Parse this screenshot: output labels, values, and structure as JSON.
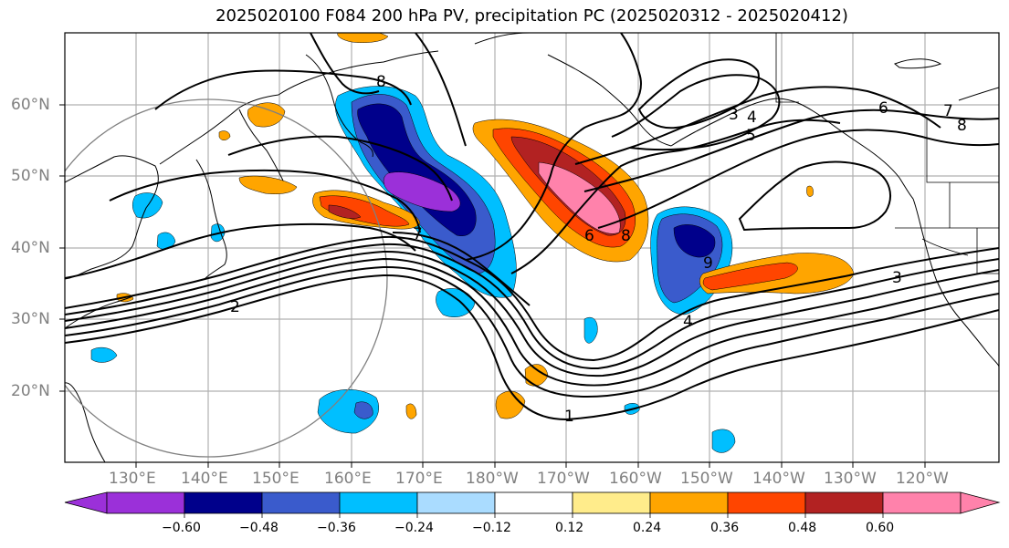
{
  "title": "2025020100 F084 200 hPa PV, precipitation PC (2025020312 - 2025020412)",
  "lat_labels": [
    "60°N",
    "50°N",
    "40°N",
    "30°N",
    "20°N"
  ],
  "lon_labels": [
    "130°E",
    "140°E",
    "150°E",
    "160°E",
    "170°E",
    "180°W",
    "170°W",
    "160°W",
    "150°W",
    "140°W",
    "130°W",
    "120°W"
  ],
  "contour_labels": [
    "8",
    "7",
    "2",
    "1",
    "4",
    "5",
    "6",
    "7",
    "8",
    "3",
    "4",
    "8",
    "9",
    "6",
    "3"
  ],
  "colorbar": {
    "tick_labels": [
      "−0.60",
      "−0.48",
      "−0.36",
      "−0.24",
      "−0.12",
      "0.12",
      "0.24",
      "0.36",
      "0.48",
      "0.60"
    ],
    "colors": [
      "#9b30d9",
      "#00008b",
      "#3a5bcc",
      "#00bfff",
      "#aadcff",
      "#ffffff",
      "#ffec8b",
      "#ffa500",
      "#ff4500",
      "#b22222",
      "#ff82ab"
    ]
  }
}
